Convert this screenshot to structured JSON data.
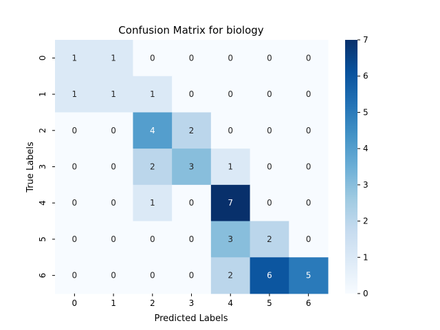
{
  "chart_data": {
    "type": "heatmap",
    "title": "Confusion Matrix for biology",
    "xlabel": "Predicted Labels",
    "ylabel": "True Labels",
    "x_categories": [
      "0",
      "1",
      "2",
      "3",
      "4",
      "5",
      "6"
    ],
    "y_categories": [
      "0",
      "1",
      "2",
      "3",
      "4",
      "5",
      "6"
    ],
    "values": [
      [
        1,
        1,
        0,
        0,
        0,
        0,
        0
      ],
      [
        1,
        1,
        1,
        0,
        0,
        0,
        0
      ],
      [
        0,
        0,
        4,
        2,
        0,
        0,
        0
      ],
      [
        0,
        0,
        2,
        3,
        1,
        0,
        0
      ],
      [
        0,
        0,
        1,
        0,
        7,
        0,
        0
      ],
      [
        0,
        0,
        0,
        0,
        3,
        2,
        0
      ],
      [
        0,
        0,
        0,
        0,
        2,
        6,
        5
      ]
    ],
    "colorbar": {
      "min": 0,
      "max": 7,
      "ticks": [
        "0",
        "1",
        "2",
        "3",
        "4",
        "5",
        "6",
        "7"
      ]
    },
    "colormap": "Blues",
    "colormap_stops": [
      "#f7fbff",
      "#deebf7",
      "#c6dbef",
      "#9ecae1",
      "#6baed6",
      "#4292c6",
      "#2171b5",
      "#08519c",
      "#08306b"
    ],
    "grid": false
  }
}
